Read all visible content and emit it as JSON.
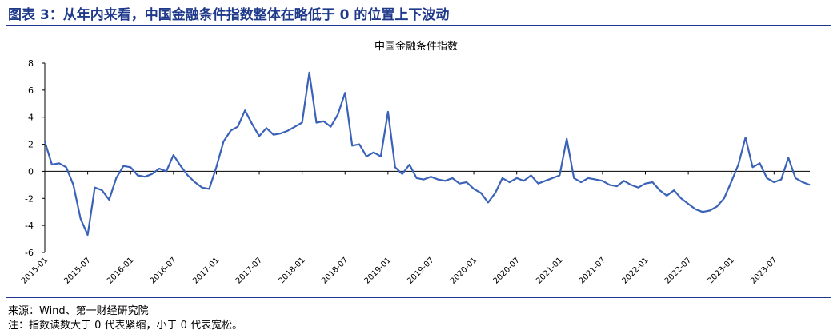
{
  "figure": {
    "title": "图表 3：从年内来看，中国金融条件指数整体在略低于 0 的位置上下波动",
    "source": "来源：Wind、第一财经研究院",
    "note": "注：指数读数大于 0 代表紧缩，小于 0 代表宽松。"
  },
  "colors": {
    "line": "#3a62b8",
    "accent": "#1f3a8a"
  },
  "chart_data": {
    "type": "line",
    "title": "中国金融条件指数",
    "xlabel": "",
    "ylabel": "",
    "ylim": [
      -6,
      8
    ],
    "yticks": [
      -6,
      -4,
      -2,
      0,
      2,
      4,
      6,
      8
    ],
    "x_ticks": [
      "2015-01",
      "2015-07",
      "2016-01",
      "2016-07",
      "2017-01",
      "2017-07",
      "2018-01",
      "2018-07",
      "2019-01",
      "2019-07",
      "2020-01",
      "2020-07",
      "2021-01",
      "2021-07",
      "2022-01",
      "2022-07",
      "2023-01",
      "2023-07"
    ],
    "grid": false,
    "series": [
      {
        "x": [
          "2015-01",
          "2015-02",
          "2015-03",
          "2015-04",
          "2015-05",
          "2015-06",
          "2015-07",
          "2015-08",
          "2015-09",
          "2015-10",
          "2015-11",
          "2015-12",
          "2016-01",
          "2016-02",
          "2016-03",
          "2016-04",
          "2016-05",
          "2016-06",
          "2016-07",
          "2016-08",
          "2016-09",
          "2016-10",
          "2016-11",
          "2016-12",
          "2017-01",
          "2017-02",
          "2017-03",
          "2017-04",
          "2017-05",
          "2017-06",
          "2017-07",
          "2017-08",
          "2017-09",
          "2017-10",
          "2017-11",
          "2017-12",
          "2018-01",
          "2018-02",
          "2018-03",
          "2018-04",
          "2018-05",
          "2018-06",
          "2018-07",
          "2018-08",
          "2018-09",
          "2018-10",
          "2018-11",
          "2018-12",
          "2019-01",
          "2019-02",
          "2019-03",
          "2019-04",
          "2019-05",
          "2019-06",
          "2019-07",
          "2019-08",
          "2019-09",
          "2019-10",
          "2019-11",
          "2019-12",
          "2020-01",
          "2020-02",
          "2020-03",
          "2020-04",
          "2020-05",
          "2020-06",
          "2020-07",
          "2020-08",
          "2020-09",
          "2020-10",
          "2020-11",
          "2020-12",
          "2021-01",
          "2021-02",
          "2021-03",
          "2021-04",
          "2021-05",
          "2021-06",
          "2021-07",
          "2021-08",
          "2021-09",
          "2021-10",
          "2021-11",
          "2021-12",
          "2022-01",
          "2022-02",
          "2022-03",
          "2022-04",
          "2022-05",
          "2022-06",
          "2022-07",
          "2022-08",
          "2022-09",
          "2022-10",
          "2022-11",
          "2022-12",
          "2023-01",
          "2023-02",
          "2023-03",
          "2023-04",
          "2023-05",
          "2023-06",
          "2023-07",
          "2023-08",
          "2023-09",
          "2023-10",
          "2023-11",
          "2023-12"
        ],
        "values": [
          2.2,
          0.5,
          0.6,
          0.3,
          -1.0,
          -3.5,
          -4.7,
          -1.2,
          -1.4,
          -2.1,
          -0.5,
          0.4,
          0.3,
          -0.3,
          -0.4,
          -0.2,
          0.2,
          0.0,
          1.2,
          0.4,
          -0.3,
          -0.8,
          -1.2,
          -1.3,
          0.3,
          2.2,
          3.0,
          3.3,
          4.5,
          3.5,
          2.6,
          3.2,
          2.7,
          2.8,
          3.0,
          3.3,
          3.6,
          7.3,
          3.6,
          3.7,
          3.3,
          4.2,
          5.8,
          1.9,
          2.0,
          1.1,
          1.4,
          1.1,
          4.4,
          0.3,
          -0.2,
          0.5,
          -0.5,
          -0.6,
          -0.4,
          -0.6,
          -0.7,
          -0.5,
          -0.9,
          -0.8,
          -1.3,
          -1.6,
          -2.3,
          -1.6,
          -0.5,
          -0.8,
          -0.5,
          -0.7,
          -0.3,
          -0.9,
          -0.7,
          -0.5,
          -0.3,
          2.4,
          -0.5,
          -0.8,
          -0.5,
          -0.6,
          -0.7,
          -1.0,
          -1.1,
          -0.7,
          -1.0,
          -1.2,
          -0.9,
          -0.8,
          -1.4,
          -1.8,
          -1.4,
          -2.0,
          -2.4,
          -2.8,
          -3.0,
          -2.9,
          -2.6,
          -2.0,
          -0.8,
          0.5,
          2.5,
          0.3,
          0.6,
          -0.5,
          -0.8,
          -0.6,
          1.0,
          -0.5,
          -0.8,
          -1.0
        ]
      }
    ]
  }
}
